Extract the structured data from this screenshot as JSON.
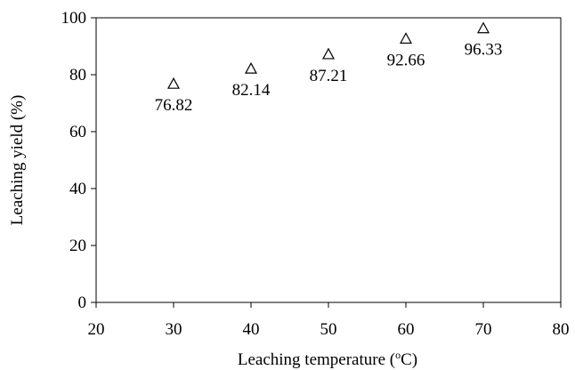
{
  "chart_data": {
    "type": "scatter",
    "marker": "open-triangle",
    "x": [
      30,
      40,
      50,
      60,
      70
    ],
    "y": [
      76.82,
      82.14,
      87.21,
      92.66,
      96.33
    ],
    "data_labels": [
      "76.82",
      "82.14",
      "87.21",
      "92.66",
      "96.33"
    ],
    "xlabel_prefix": "Leaching temperature (",
    "xlabel_sup": "o",
    "xlabel_suffix": "C)",
    "ylabel": "Leaching yield (%)",
    "xlim": [
      20,
      80
    ],
    "ylim": [
      0,
      100
    ],
    "xticks": [
      "20",
      "30",
      "40",
      "50",
      "60",
      "70",
      "80"
    ],
    "yticks": [
      "0",
      "20",
      "40",
      "60",
      "80",
      "100"
    ],
    "grid": false,
    "legend": "none",
    "color": "#000000"
  }
}
